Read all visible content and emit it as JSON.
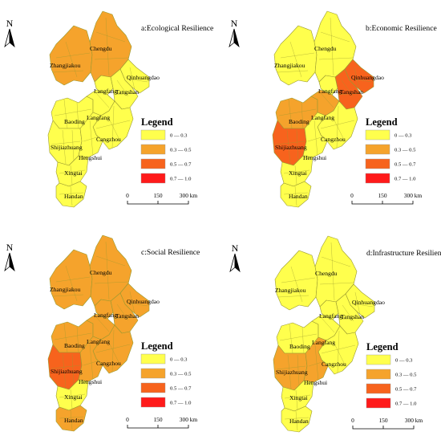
{
  "colors": {
    "class_1": "#ffff4d",
    "class_2": "#f5a32c",
    "class_3": "#f7631d",
    "class_4": "#ff1a1a",
    "border": "#9a9a30"
  },
  "legend": {
    "title": "Legend",
    "items": [
      {
        "label": "0 — 0.3",
        "color": "#ffff4d"
      },
      {
        "label": "0.3 — 0.5",
        "color": "#f5a32c"
      },
      {
        "label": "0.5 — 0.7",
        "color": "#f7631d"
      },
      {
        "label": "0.7 — 1.0",
        "color": "#ff1a1a"
      }
    ]
  },
  "north_arrow": {
    "label": "N"
  },
  "scale_bar": {
    "ticks": [
      "0",
      "150",
      "300 km"
    ]
  },
  "cities": [
    "Chengdu",
    "Zhangjiakou",
    "Qinhuangdao",
    "Langfang",
    "Tangshan",
    "Baoding",
    "Langfang",
    "Cangzhou",
    "Shijiazhuang",
    "Hengshui",
    "Xingtai",
    "Handan"
  ],
  "panels": [
    {
      "title": "a:Ecological Resilience",
      "classes": {
        "chengde": 2,
        "zhangjiakou": 2,
        "qinhuangdao": 1,
        "tangshan": 1,
        "langfang_n": 1,
        "baoding": 1,
        "langfang_s": 1,
        "cangzhou": 1,
        "shijiazhuang": 1,
        "hengshui": 1,
        "xingtai": 1,
        "handan": 1
      }
    },
    {
      "title": "b:Economic Resilience",
      "classes": {
        "chengde": 1,
        "zhangjiakou": 1,
        "qinhuangdao": 3,
        "tangshan": 3,
        "langfang_n": 1,
        "baoding": 2,
        "langfang_s": 2,
        "cangzhou": 1,
        "shijiazhuang": 3,
        "hengshui": 1,
        "xingtai": 1,
        "handan": 1
      }
    },
    {
      "title": "c:Social Resilience",
      "classes": {
        "chengde": 2,
        "zhangjiakou": 2,
        "qinhuangdao": 2,
        "tangshan": 2,
        "langfang_n": 2,
        "baoding": 2,
        "langfang_s": 2,
        "cangzhou": 2,
        "shijiazhuang": 3,
        "hengshui": 2,
        "xingtai": 1,
        "handan": 2
      }
    },
    {
      "title": "d:Infrastructure Resilience",
      "classes": {
        "chengde": 1,
        "zhangjiakou": 1,
        "qinhuangdao": 1,
        "tangshan": 1,
        "langfang_n": 1,
        "baoding": 1,
        "langfang_s": 1,
        "cangzhou": 1,
        "shijiazhuang": 2,
        "hengshui": 2,
        "xingtai": 1,
        "handan": 1
      }
    }
  ]
}
